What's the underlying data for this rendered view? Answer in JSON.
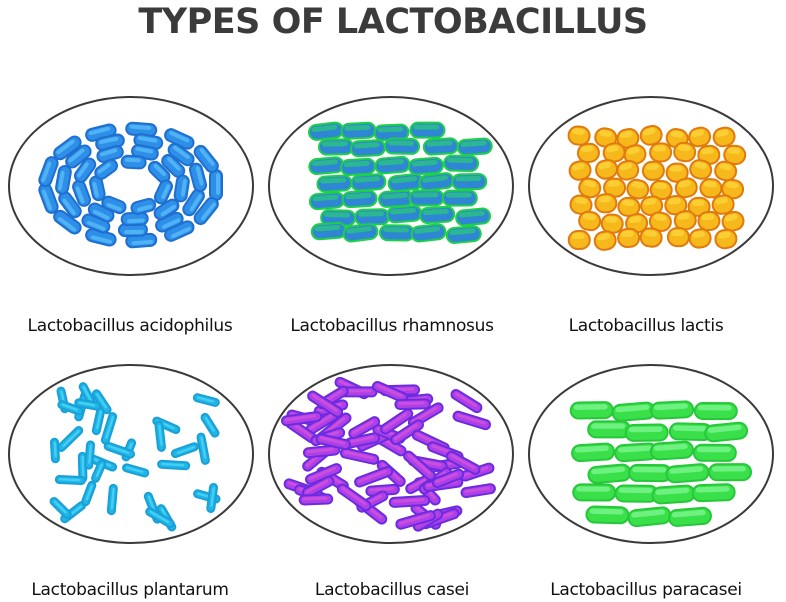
{
  "title": "TYPES OF LACTOBACILLUS",
  "plates": [
    {
      "name": "Lactobacillus acidophilus",
      "fill": "#2e8fe8",
      "stroke": "#1f6fd0",
      "highlight": "#6ad0ff",
      "shape": "rods-ring"
    },
    {
      "name": "Lactobacillus rhamnosus",
      "fill": "#2f86d4",
      "stroke": "#1ecf4a",
      "highlight": "#28e05a",
      "shape": "rods-grid"
    },
    {
      "name": "Lactobacillus lactis",
      "fill": "#f6b81a",
      "stroke": "#e07a10",
      "highlight": "#ffe04a",
      "shape": "cocci"
    },
    {
      "name": "Lactobacillus plantarum",
      "fill": "#22b6e6",
      "stroke": "#1aa0d8",
      "highlight": "#5fe6ff",
      "shape": "rods-scatter"
    },
    {
      "name": "Lactobacillus casei",
      "fill": "#b040e6",
      "stroke": "#6a2ce0",
      "highlight": "#e05ad8",
      "shape": "rods-dense"
    },
    {
      "name": "Lactobacillus paracasei",
      "fill": "#3ae04a",
      "stroke": "#26c83a",
      "highlight": "#9affb0",
      "shape": "rods-rows"
    }
  ]
}
